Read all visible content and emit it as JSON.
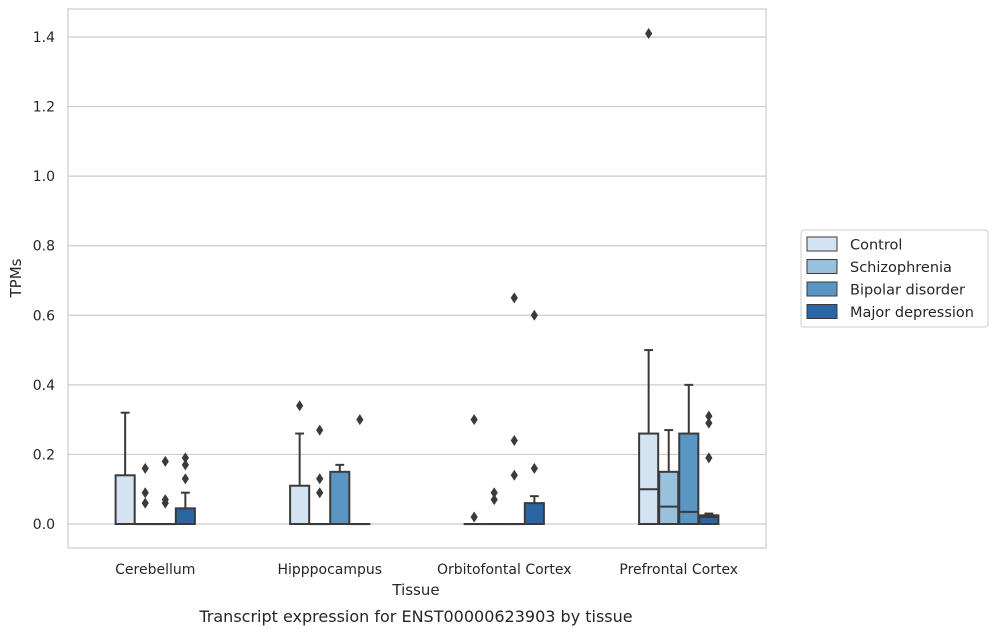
{
  "chart_data": {
    "type": "boxplot",
    "caption": "Transcript expression for ENST00000623903 by tissue",
    "xlabel": "Tissue",
    "ylabel": "TPMs",
    "ylim": [
      -0.07,
      1.48
    ],
    "yticks": [
      0.0,
      0.2,
      0.4,
      0.6,
      0.8,
      1.0,
      1.2,
      1.4
    ],
    "ytick_labels": [
      "0.0",
      "0.2",
      "0.4",
      "0.6",
      "0.8",
      "1.0",
      "1.2",
      "1.4"
    ],
    "grid": "horizontal",
    "legend_position": "right",
    "categories": [
      "Cerebellum",
      "Hipppocampus",
      "Orbitofontal Cortex",
      "Prefrontal Cortex"
    ],
    "series": [
      {
        "name": "Control",
        "color": "#d4e3f2",
        "boxes": [
          {
            "q1": 0,
            "median": 0,
            "q3": 0.14,
            "whisker_low": 0,
            "whisker_high": 0.32,
            "outliers": []
          },
          {
            "q1": 0,
            "median": 0,
            "q3": 0.11,
            "whisker_low": 0,
            "whisker_high": 0.26,
            "outliers": [
              0.34
            ]
          },
          {
            "q1": 0,
            "median": 0,
            "q3": 0,
            "whisker_low": 0,
            "whisker_high": 0,
            "outliers": [
              0.02,
              0.3
            ]
          },
          {
            "q1": 0,
            "median": 0.1,
            "q3": 0.26,
            "whisker_low": 0,
            "whisker_high": 0.5,
            "outliers": [
              1.41
            ]
          }
        ]
      },
      {
        "name": "Schizophrenia",
        "color": "#99c0dc",
        "boxes": [
          {
            "q1": 0,
            "median": 0,
            "q3": 0,
            "whisker_low": 0,
            "whisker_high": 0,
            "outliers": [
              0.06,
              0.09,
              0.16
            ]
          },
          {
            "q1": 0,
            "median": 0,
            "q3": 0,
            "whisker_low": 0,
            "whisker_high": 0,
            "outliers": [
              0.09,
              0.13,
              0.27
            ]
          },
          {
            "q1": 0,
            "median": 0,
            "q3": 0,
            "whisker_low": 0,
            "whisker_high": 0,
            "outliers": [
              0.07,
              0.09
            ]
          },
          {
            "q1": 0,
            "median": 0.05,
            "q3": 0.15,
            "whisker_low": 0,
            "whisker_high": 0.27,
            "outliers": []
          }
        ]
      },
      {
        "name": "Bipolar disorder",
        "color": "#5a96c4",
        "boxes": [
          {
            "q1": 0,
            "median": 0,
            "q3": 0,
            "whisker_low": 0,
            "whisker_high": 0,
            "outliers": [
              0.06,
              0.07,
              0.18
            ]
          },
          {
            "q1": 0,
            "median": 0,
            "q3": 0.15,
            "whisker_low": 0,
            "whisker_high": 0.17,
            "outliers": []
          },
          {
            "q1": 0,
            "median": 0,
            "q3": 0,
            "whisker_low": 0,
            "whisker_high": 0,
            "outliers": [
              0.14,
              0.24,
              0.65
            ]
          },
          {
            "q1": 0,
            "median": 0.035,
            "q3": 0.26,
            "whisker_low": 0,
            "whisker_high": 0.4,
            "outliers": []
          }
        ]
      },
      {
        "name": "Major depression",
        "color": "#2b66a3",
        "boxes": [
          {
            "q1": 0,
            "median": 0,
            "q3": 0.045,
            "whisker_low": 0,
            "whisker_high": 0.09,
            "outliers": [
              0.13,
              0.17,
              0.19
            ]
          },
          {
            "q1": 0,
            "median": 0,
            "q3": 0,
            "whisker_low": 0,
            "whisker_high": 0,
            "outliers": [
              0.3
            ]
          },
          {
            "q1": 0,
            "median": 0,
            "q3": 0.06,
            "whisker_low": 0,
            "whisker_high": 0.08,
            "outliers": [
              0.16,
              0.6
            ]
          },
          {
            "q1": 0,
            "median": 0.02,
            "q3": 0.025,
            "whisker_low": 0,
            "whisker_high": 0.03,
            "outliers": [
              0.19,
              0.29,
              0.31
            ]
          }
        ]
      }
    ]
  }
}
